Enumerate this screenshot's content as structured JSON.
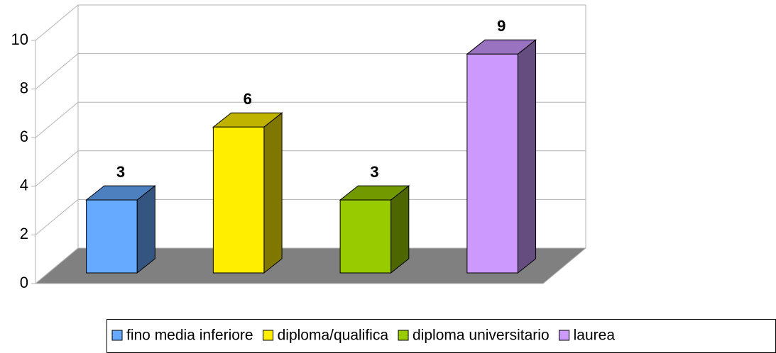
{
  "chart_data": {
    "type": "bar3d",
    "categories": [
      null
    ],
    "series": [
      {
        "name": "fino media inferiore",
        "color": "#66aaff",
        "values": [
          3
        ]
      },
      {
        "name": "diploma/qualifica",
        "color": "#ffee00",
        "values": [
          6
        ]
      },
      {
        "name": "diploma universitario",
        "color": "#99cc00",
        "values": [
          3
        ]
      },
      {
        "name": "laurea",
        "color": "#cc99ff",
        "values": [
          9
        ]
      }
    ],
    "ylim": [
      0,
      10
    ],
    "yticks": [
      0,
      2,
      4,
      6,
      8,
      10
    ],
    "grid": true,
    "legend": "bottom"
  }
}
